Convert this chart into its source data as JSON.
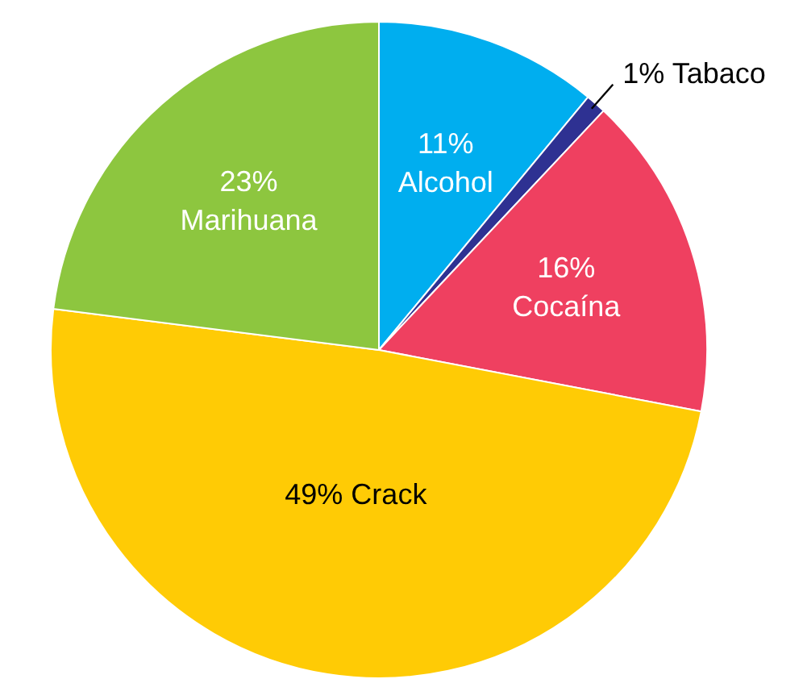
{
  "chart_data": {
    "type": "pie",
    "categories": [
      "Alcohol",
      "Tabaco",
      "Cocaína",
      "Crack",
      "Marihuana"
    ],
    "values": [
      11,
      1,
      16,
      49,
      23
    ],
    "colors": [
      "#00aeef",
      "#2e3192",
      "#ef4060",
      "#ffcb05",
      "#8dc63f"
    ],
    "value_labels": [
      "11%",
      "1%",
      "16%",
      "49%",
      "23%"
    ],
    "legend": false
  }
}
